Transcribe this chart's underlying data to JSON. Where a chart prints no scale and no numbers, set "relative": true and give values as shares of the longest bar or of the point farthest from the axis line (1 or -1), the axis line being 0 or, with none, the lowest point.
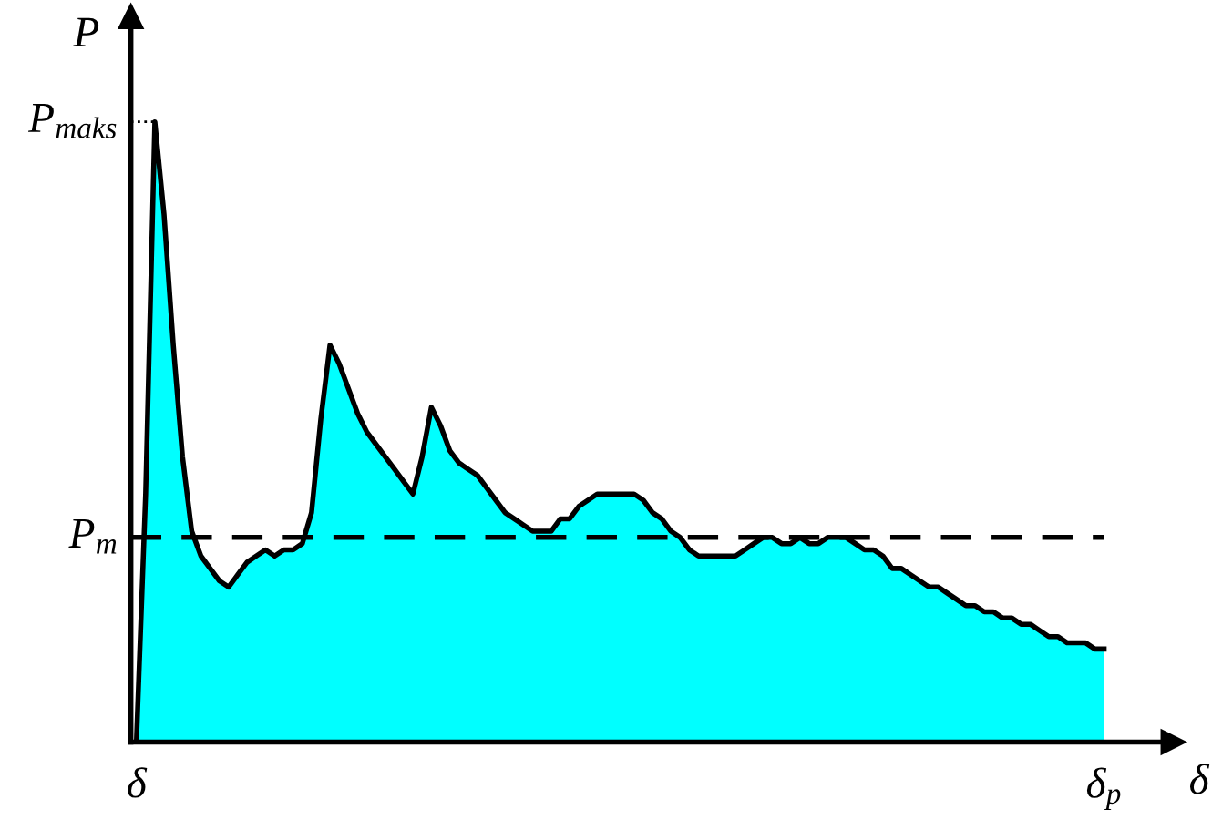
{
  "chart_data": {
    "type": "area",
    "relative": true,
    "ylabel": "P",
    "xlabel": "δ",
    "categories": [
      null,
      null,
      null,
      null,
      null,
      null,
      null,
      null,
      null,
      null,
      null,
      null,
      null,
      null,
      null,
      null,
      null,
      null,
      null,
      null,
      null,
      null,
      null,
      null,
      null,
      null,
      null,
      null,
      null,
      null,
      null,
      null,
      null,
      null,
      null,
      null,
      null,
      null,
      null,
      null,
      null,
      null,
      null,
      null,
      null,
      null,
      null,
      null,
      null,
      null,
      null,
      null,
      null,
      null,
      null,
      null,
      null,
      null,
      null,
      null,
      null,
      null,
      null,
      null,
      null,
      null,
      null,
      null,
      null,
      null,
      null,
      null,
      null,
      null,
      null,
      null,
      null,
      null,
      null,
      null,
      null,
      null,
      null,
      null,
      null,
      null,
      null,
      null,
      null,
      null,
      null,
      null,
      null,
      null,
      null,
      null,
      null,
      null,
      null,
      null,
      null,
      null,
      null,
      null,
      null,
      null
    ],
    "series": [
      {
        "color": "#00ffff",
        "values": [
          0,
          0.4,
          1.0,
          0.85,
          0.64,
          0.46,
          0.34,
          0.3,
          0.28,
          0.26,
          0.25,
          0.27,
          0.29,
          0.3,
          0.31,
          0.3,
          0.31,
          0.31,
          0.32,
          0.37,
          0.52,
          0.64,
          0.61,
          0.57,
          0.53,
          0.5,
          0.48,
          0.46,
          0.44,
          0.42,
          0.4,
          0.46,
          0.54,
          0.51,
          0.47,
          0.45,
          0.44,
          0.43,
          0.41,
          0.39,
          0.37,
          0.36,
          0.35,
          0.34,
          0.34,
          0.34,
          0.36,
          0.36,
          0.38,
          0.39,
          0.4,
          0.4,
          0.4,
          0.4,
          0.4,
          0.39,
          0.37,
          0.36,
          0.34,
          0.33,
          0.31,
          0.3,
          0.3,
          0.3,
          0.3,
          0.3,
          0.31,
          0.32,
          0.33,
          0.33,
          0.32,
          0.32,
          0.33,
          0.32,
          0.32,
          0.33,
          0.33,
          0.33,
          0.32,
          0.31,
          0.31,
          0.3,
          0.28,
          0.28,
          0.27,
          0.26,
          0.25,
          0.25,
          0.24,
          0.23,
          0.22,
          0.22,
          0.21,
          0.21,
          0.2,
          0.2,
          0.19,
          0.19,
          0.18,
          0.17,
          0.17,
          0.16,
          0.16,
          0.16,
          0.15,
          0.15
        ]
      }
    ],
    "ref_lines": [
      {
        "axis": "y",
        "value": 0.33,
        "label": "P$_{m}$",
        "line_style": "dashed",
        "color": "#000000"
      },
      {
        "axis": "y",
        "value": 1.0,
        "label": "P$_{maks}$",
        "line_style": "dotted",
        "color": "#000000"
      }
    ],
    "annotations": [
      "δ",
      "δ$_{p}$"
    ],
    "legend": false
  }
}
